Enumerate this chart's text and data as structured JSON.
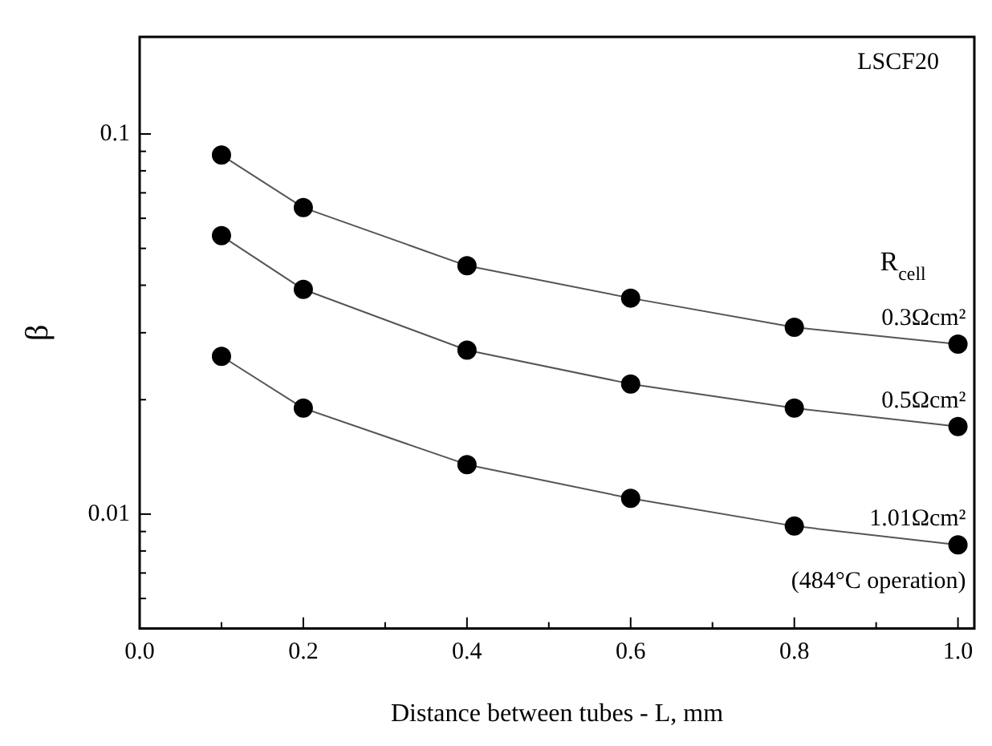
{
  "chart_data": {
    "type": "line",
    "xlabel": "Distance between tubes - L, mm",
    "ylabel": "β",
    "legend_title": "R$_{cell}$",
    "log": "y",
    "grid": false,
    "legend": false,
    "marker": "circle",
    "line_style": "solid",
    "x": [
      0.1,
      0.2,
      0.4,
      0.6,
      0.8,
      1.0
    ],
    "xlim": [
      0,
      1.02
    ],
    "xticks": [
      {
        "value": 0,
        "label": "0.0"
      },
      {
        "value": 0.1,
        "label": null
      },
      {
        "value": 0.2,
        "label": "0.2"
      },
      {
        "value": 0.3,
        "label": null
      },
      {
        "value": 0.4,
        "label": "0.4"
      },
      {
        "value": 0.5,
        "label": null
      },
      {
        "value": 0.6,
        "label": "0.6"
      },
      {
        "value": 0.7,
        "label": null
      },
      {
        "value": 0.8,
        "label": "0.8"
      },
      {
        "value": 0.9,
        "label": null
      },
      {
        "value": 1.0,
        "label": "1.0"
      }
    ],
    "ylim": [
      0.005,
      0.18
    ],
    "yticks": [
      {
        "value": 0.006,
        "label": null
      },
      {
        "value": 0.007,
        "label": null
      },
      {
        "value": 0.008,
        "label": null
      },
      {
        "value": 0.009,
        "label": null
      },
      0.01,
      {
        "value": 0.02,
        "label": null
      },
      {
        "value": 0.03,
        "label": null
      },
      {
        "value": 0.04,
        "label": null
      },
      {
        "value": 0.05,
        "label": null
      },
      {
        "value": 0.06,
        "label": null
      },
      {
        "value": 0.07,
        "label": null
      },
      {
        "value": 0.08,
        "label": null
      },
      {
        "value": 0.09,
        "label": null
      },
      0.1
    ],
    "series": [
      {
        "name": "0.3Ωcm²",
        "color": "#000000",
        "values": [
          0.088,
          0.064,
          0.045,
          0.037,
          0.031,
          0.028
        ]
      },
      {
        "name": "0.5Ωcm²",
        "color": "#000000",
        "values": [
          0.054,
          0.039,
          0.027,
          0.022,
          0.019,
          0.017
        ]
      },
      {
        "name": "1.01Ωcm²",
        "color": "#000000",
        "values": [
          0.026,
          0.019,
          0.0135,
          0.011,
          0.0093,
          0.0083
        ]
      }
    ],
    "annotations": [
      "LSCF20",
      "(484°C operation)"
    ]
  }
}
